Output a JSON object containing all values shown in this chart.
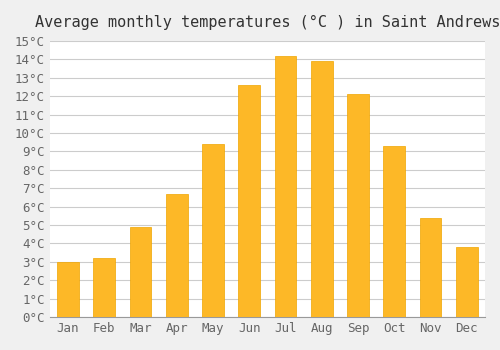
{
  "title": "Average monthly temperatures (°C ) in Saint Andrews",
  "months": [
    "Jan",
    "Feb",
    "Mar",
    "Apr",
    "May",
    "Jun",
    "Jul",
    "Aug",
    "Sep",
    "Oct",
    "Nov",
    "Dec"
  ],
  "values": [
    3.0,
    3.2,
    4.9,
    6.7,
    9.4,
    12.6,
    14.2,
    13.9,
    12.1,
    9.3,
    5.4,
    3.8
  ],
  "bar_color_main": "#FDB827",
  "bar_color_edge": "#F0A500",
  "background_color": "#F0F0F0",
  "plot_bg_color": "#FFFFFF",
  "ylim": [
    0,
    15
  ],
  "ytick_step": 1,
  "title_fontsize": 11,
  "tick_fontsize": 9,
  "grid_color": "#CCCCCC"
}
